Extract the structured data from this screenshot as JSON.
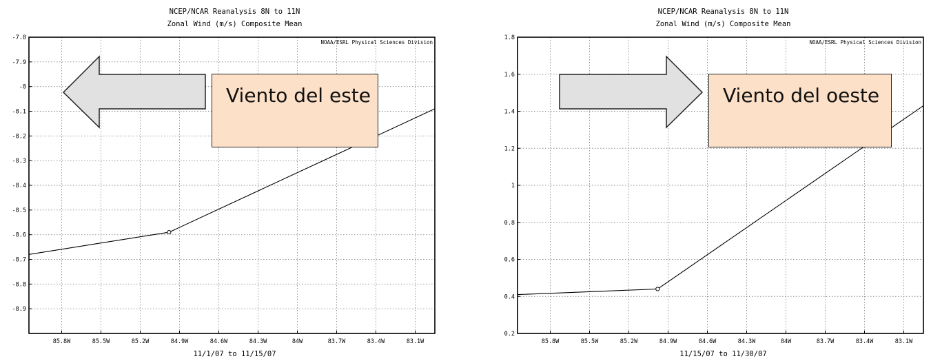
{
  "chart_data": [
    {
      "type": "line",
      "title": "NCEP/NCAR Reanalysis 8N to 11N",
      "subtitle": "Zonal Wind (m/s) Composite Mean",
      "credit": "NOAA/ESRL Physical Sciences Division",
      "xlabel": "11/1/07  to 11/15/07",
      "ylabel": "",
      "x_ticks": [
        "85.8W",
        "85.5W",
        "85.2W",
        "84.9W",
        "84.6W",
        "84.3W",
        "84W",
        "83.7W",
        "83.4W",
        "83.1W"
      ],
      "x_tick_values": [
        -85.8,
        -85.5,
        -85.2,
        -84.9,
        -84.6,
        -84.3,
        -84.0,
        -83.7,
        -83.4,
        -83.1
      ],
      "xlim": [
        -86.05,
        -82.95
      ],
      "y_ticks": [
        "-7.8",
        "-7.9",
        "-8",
        "-8.1",
        "-8.2",
        "-8.3",
        "-8.4",
        "-8.5",
        "-8.6",
        "-8.7",
        "-8.8",
        "-8.9"
      ],
      "y_tick_values": [
        -7.8,
        -7.9,
        -8.0,
        -8.1,
        -8.2,
        -8.3,
        -8.4,
        -8.5,
        -8.6,
        -8.7,
        -8.8,
        -8.9
      ],
      "ylim": [
        -9.0,
        -7.8
      ],
      "grid": true,
      "series": [
        {
          "x": [
            -86.05,
            -84.98,
            -82.95
          ],
          "y": [
            -8.68,
            -8.59,
            -8.09
          ],
          "marker_index": 1
        }
      ]
    },
    {
      "type": "line",
      "title": "NCEP/NCAR Reanalysis 8N to 11N",
      "subtitle": "Zonal Wind (m/s) Composite Mean",
      "credit": "NOAA/ESRL Physical Sciences Division",
      "xlabel": "11/15/07  to 11/30/07",
      "ylabel": "",
      "x_ticks": [
        "85.8W",
        "85.5W",
        "85.2W",
        "84.9W",
        "84.6W",
        "84.3W",
        "84W",
        "83.7W",
        "83.4W",
        "83.1W"
      ],
      "x_tick_values": [
        -85.8,
        -85.5,
        -85.2,
        -84.9,
        -84.6,
        -84.3,
        -84.0,
        -83.7,
        -83.4,
        -83.1
      ],
      "xlim": [
        -86.05,
        -82.95
      ],
      "y_ticks": [
        "1.8",
        "1.6",
        "1.4",
        "1.2",
        "1",
        "0.8",
        "0.6",
        "0.4",
        "0.2"
      ],
      "y_tick_values": [
        1.8,
        1.6,
        1.4,
        1.2,
        1.0,
        0.8,
        0.6,
        0.4,
        0.2
      ],
      "ylim": [
        0.2,
        1.8
      ],
      "grid": true,
      "series": [
        {
          "x": [
            -86.05,
            -84.98,
            -82.95
          ],
          "y": [
            0.41,
            0.44,
            1.43
          ],
          "marker_index": 1
        }
      ]
    }
  ],
  "annotations": {
    "left": {
      "label": "Viento del este",
      "arrow_direction": "left",
      "arrow_fill": "#e1e1e1",
      "box_fill": "#fde0c8"
    },
    "right": {
      "label": "Viento del oeste",
      "arrow_direction": "right",
      "arrow_fill": "#e1e1e1",
      "box_fill": "#fde0c8"
    }
  }
}
